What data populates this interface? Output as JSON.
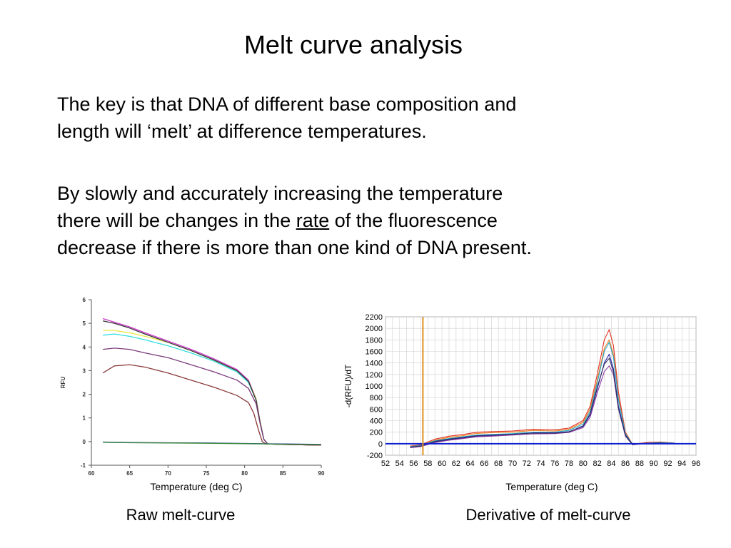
{
  "slide": {
    "title": "Melt curve analysis",
    "para1_line1": "The key is that DNA of different base composition and",
    "para1_line2": "length will ‘melt’ at difference temperatures.",
    "para2_line1": "By slowly and accurately increasing the temperature",
    "para2_line2a": "there will be changes in the ",
    "para2_line2u": "rate",
    "para2_line2b": " of the fluorescence",
    "para2_line3": "decrease if there is more than one kind of DNA present."
  },
  "captions": {
    "left_xlabel": "Temperature (deg C)",
    "right_xlabel": "Temperature (deg C)",
    "left": "Raw melt-curve",
    "right": "Derivative of melt-curve"
  },
  "chart_data": [
    {
      "type": "line",
      "ylabel": "RFU",
      "xlim": [
        60,
        90
      ],
      "ylim": [
        -1,
        6
      ],
      "x_ticks": [
        60,
        65,
        70,
        75,
        80,
        85,
        90
      ],
      "y_ticks": [
        -1,
        0,
        1,
        2,
        3,
        4,
        5,
        6
      ],
      "grid": false,
      "series": [
        {
          "color": "#cc33cc",
          "x": [
            61.5,
            63,
            65,
            67,
            70,
            73,
            76,
            79,
            80.5,
            81.5,
            82,
            82.5,
            83,
            85,
            90
          ],
          "y": [
            5.2,
            5.05,
            4.85,
            4.6,
            4.25,
            3.9,
            3.5,
            3.05,
            2.6,
            1.8,
            0.9,
            0.1,
            -0.1,
            -0.12,
            -0.15
          ]
        },
        {
          "color": "#e8e840",
          "x": [
            61.5,
            63,
            65,
            67,
            70,
            73,
            76,
            79,
            80.5,
            81.5,
            82,
            82.5,
            83,
            85,
            90
          ],
          "y": [
            4.7,
            4.7,
            4.6,
            4.45,
            4.2,
            3.85,
            3.45,
            3.0,
            2.55,
            1.8,
            0.9,
            0.1,
            -0.1,
            -0.12,
            -0.15
          ]
        },
        {
          "color": "#33dddd",
          "x": [
            61.5,
            63,
            65,
            67,
            70,
            73,
            76,
            79,
            80.5,
            81.5,
            82,
            82.5,
            83,
            85,
            90
          ],
          "y": [
            4.5,
            4.55,
            4.45,
            4.3,
            4.05,
            3.75,
            3.4,
            2.95,
            2.5,
            1.75,
            0.85,
            0.1,
            -0.1,
            -0.12,
            -0.15
          ]
        },
        {
          "color": "#333333",
          "x": [
            61.5,
            63,
            65,
            67,
            70,
            73,
            76,
            79,
            80.5,
            81.5,
            82,
            82.5,
            83,
            85,
            90
          ],
          "y": [
            5.1,
            5.0,
            4.8,
            4.55,
            4.2,
            3.85,
            3.45,
            3.0,
            2.55,
            1.75,
            0.85,
            0.1,
            -0.1,
            -0.12,
            -0.15
          ]
        },
        {
          "color": "#7a3a7a",
          "x": [
            61.5,
            63,
            65,
            67,
            70,
            73,
            76,
            79,
            80.5,
            81.5,
            82,
            82.5,
            83,
            85,
            90
          ],
          "y": [
            3.9,
            3.95,
            3.9,
            3.75,
            3.55,
            3.25,
            2.95,
            2.6,
            2.25,
            1.6,
            0.8,
            0.1,
            -0.1,
            -0.12,
            -0.15
          ]
        },
        {
          "color": "#8b3a3a",
          "x": [
            61.5,
            63,
            65,
            67,
            70,
            73,
            76,
            79,
            80.5,
            81.2,
            81.8,
            82.3,
            82.8,
            85,
            90
          ],
          "y": [
            2.9,
            3.2,
            3.25,
            3.15,
            2.9,
            2.6,
            2.3,
            1.95,
            1.65,
            1.2,
            0.5,
            0.0,
            -0.1,
            -0.12,
            -0.15
          ]
        },
        {
          "color": "#2233aa",
          "x": [
            61.5,
            65,
            70,
            75,
            80,
            85,
            90
          ],
          "y": [
            -0.02,
            -0.04,
            -0.05,
            -0.06,
            -0.08,
            -0.1,
            -0.12
          ]
        },
        {
          "color": "#3a8a3a",
          "x": [
            61.5,
            65,
            70,
            75,
            80,
            85,
            90
          ],
          "y": [
            -0.03,
            -0.05,
            -0.06,
            -0.07,
            -0.09,
            -0.11,
            -0.13
          ]
        }
      ]
    },
    {
      "type": "line",
      "ylabel": "-d(RFU)/dT",
      "xlim": [
        52,
        96
      ],
      "ylim": [
        -200,
        2200
      ],
      "x_ticks": [
        52,
        54,
        56,
        58,
        60,
        62,
        64,
        66,
        68,
        70,
        72,
        74,
        76,
        78,
        80,
        82,
        84,
        86,
        88,
        90,
        92,
        94,
        96
      ],
      "y_ticks": [
        -200,
        0,
        200,
        400,
        600,
        800,
        1000,
        1200,
        1400,
        1600,
        1800,
        2000,
        2200
      ],
      "grid": true,
      "threshold_y": 0,
      "vertical_marker_x": 57.3,
      "series": [
        {
          "color": "#e03020",
          "x": [
            55.5,
            57,
            59,
            61,
            63,
            65,
            67,
            70,
            73,
            76,
            78,
            80,
            81,
            82,
            83,
            83.7,
            84.3,
            85,
            86,
            87,
            89,
            91,
            93
          ],
          "y": [
            -40,
            -20,
            80,
            130,
            160,
            200,
            210,
            220,
            250,
            240,
            270,
            400,
            650,
            1200,
            1800,
            1980,
            1700,
            900,
            200,
            -10,
            20,
            30,
            10
          ]
        },
        {
          "color": "#f08020",
          "x": [
            55.5,
            57,
            59,
            61,
            63,
            65,
            67,
            70,
            73,
            76,
            78,
            80,
            81,
            82,
            83,
            83.7,
            84.3,
            85,
            86,
            87,
            89,
            91,
            93
          ],
          "y": [
            -50,
            -30,
            60,
            110,
            140,
            180,
            190,
            200,
            230,
            220,
            250,
            370,
            600,
            1100,
            1650,
            1800,
            1550,
            800,
            180,
            -10,
            10,
            20,
            10
          ]
        },
        {
          "color": "#20aacc",
          "x": [
            55.5,
            57,
            59,
            61,
            63,
            65,
            67,
            70,
            73,
            76,
            78,
            80,
            81,
            82,
            83,
            83.7,
            84.3,
            85,
            86,
            87,
            89,
            91,
            93
          ],
          "y": [
            -50,
            -30,
            50,
            90,
            120,
            150,
            160,
            175,
            200,
            200,
            230,
            340,
            560,
            1050,
            1600,
            1760,
            1500,
            760,
            170,
            -10,
            10,
            20,
            10
          ]
        },
        {
          "color": "#2020aa",
          "x": [
            55.5,
            57,
            59,
            61,
            63,
            65,
            67,
            70,
            73,
            76,
            78,
            80,
            81,
            82,
            83,
            83.7,
            84.3,
            85,
            86,
            87,
            89,
            91,
            93
          ],
          "y": [
            -60,
            -40,
            30,
            70,
            100,
            130,
            140,
            160,
            190,
            190,
            210,
            300,
            500,
            950,
            1400,
            1550,
            1300,
            650,
            150,
            -15,
            10,
            10,
            5
          ]
        },
        {
          "color": "#8a3aa0",
          "x": [
            55.5,
            57,
            59,
            61,
            63,
            65,
            67,
            70,
            73,
            76,
            78,
            80,
            81,
            82,
            83,
            83.7,
            84.3,
            85,
            86,
            87,
            89,
            91,
            93
          ],
          "y": [
            -70,
            -50,
            20,
            60,
            90,
            120,
            130,
            150,
            170,
            175,
            195,
            280,
            460,
            880,
            1250,
            1350,
            1200,
            600,
            130,
            -20,
            5,
            10,
            5
          ]
        },
        {
          "color": "#303060",
          "x": [
            55.5,
            57,
            59,
            61,
            63,
            65,
            67,
            70,
            73,
            76,
            78,
            80,
            81,
            82,
            83,
            83.7,
            84.3,
            85,
            86,
            87,
            89,
            91,
            93
          ],
          "y": [
            -60,
            -40,
            40,
            80,
            110,
            140,
            150,
            165,
            185,
            185,
            205,
            310,
            520,
            980,
            1380,
            1480,
            1250,
            620,
            140,
            -15,
            8,
            12,
            5
          ]
        }
      ]
    }
  ]
}
